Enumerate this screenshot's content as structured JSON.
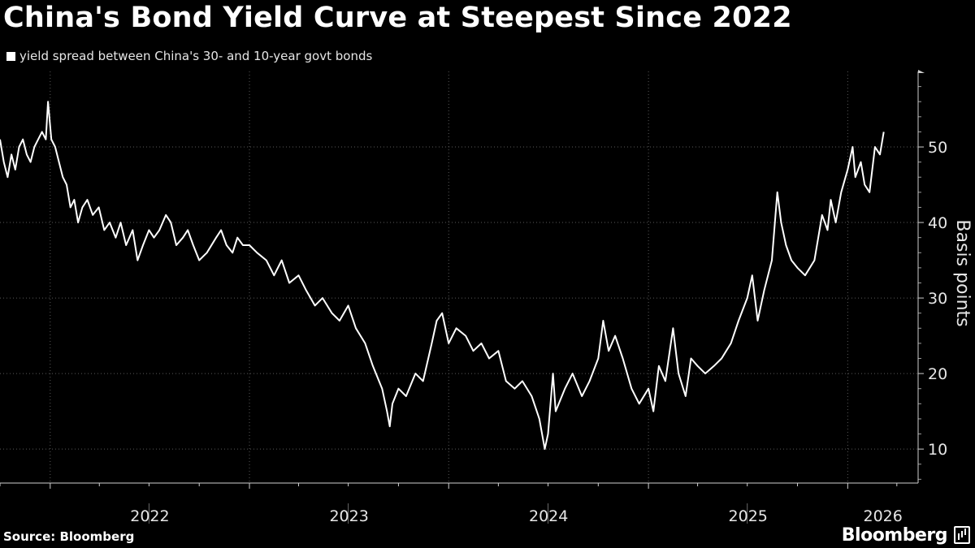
{
  "title": "China's Bond Yield Curve at Steepest Since 2022",
  "legend": {
    "label": "yield spread between China's 30- and 10-year govt bonds",
    "color": "#ffffff"
  },
  "source": "Source: Bloomberg",
  "brand": "Bloomberg",
  "chart_data": {
    "type": "line",
    "title": "China's Bond Yield Curve at Steepest Since 2022",
    "ylabel": "Basis points",
    "xlabel": "",
    "ylim": [
      5.5,
      60
    ],
    "yticks": [
      10,
      20,
      30,
      40,
      50
    ],
    "xlim": [
      "2021-10-01",
      "2026-05-10"
    ],
    "x_tick_labels": [
      "2022",
      "2023",
      "2024",
      "2025",
      "2026"
    ],
    "grid": true,
    "legend_position": "top-left",
    "series": [
      {
        "name": "yield spread between China's 30- and 10-year govt bonds",
        "color": "#ffffff",
        "points": [
          [
            "2021-10-01",
            51
          ],
          [
            "2021-10-08",
            48
          ],
          [
            "2021-10-15",
            46
          ],
          [
            "2021-10-22",
            49
          ],
          [
            "2021-10-29",
            47
          ],
          [
            "2021-11-05",
            50
          ],
          [
            "2021-11-12",
            51
          ],
          [
            "2021-11-19",
            49
          ],
          [
            "2021-11-26",
            48
          ],
          [
            "2021-12-03",
            50
          ],
          [
            "2021-12-10",
            51
          ],
          [
            "2021-12-17",
            52
          ],
          [
            "2021-12-24",
            51
          ],
          [
            "2021-12-28",
            56
          ],
          [
            "2022-01-03",
            51
          ],
          [
            "2022-01-10",
            50
          ],
          [
            "2022-01-17",
            48
          ],
          [
            "2022-01-24",
            46
          ],
          [
            "2022-01-31",
            45
          ],
          [
            "2022-02-07",
            42
          ],
          [
            "2022-02-14",
            43
          ],
          [
            "2022-02-21",
            40
          ],
          [
            "2022-03-01",
            42
          ],
          [
            "2022-03-10",
            43
          ],
          [
            "2022-03-20",
            41
          ],
          [
            "2022-03-31",
            42
          ],
          [
            "2022-04-10",
            39
          ],
          [
            "2022-04-20",
            40
          ],
          [
            "2022-05-01",
            38
          ],
          [
            "2022-05-10",
            40
          ],
          [
            "2022-05-20",
            37
          ],
          [
            "2022-06-01",
            39
          ],
          [
            "2022-06-10",
            35
          ],
          [
            "2022-06-20",
            37
          ],
          [
            "2022-07-01",
            39
          ],
          [
            "2022-07-10",
            38
          ],
          [
            "2022-07-20",
            39
          ],
          [
            "2022-08-01",
            41
          ],
          [
            "2022-08-10",
            40
          ],
          [
            "2022-08-20",
            37
          ],
          [
            "2022-09-01",
            38
          ],
          [
            "2022-09-10",
            39
          ],
          [
            "2022-09-20",
            37
          ],
          [
            "2022-10-01",
            35
          ],
          [
            "2022-10-15",
            36
          ],
          [
            "2022-11-01",
            38
          ],
          [
            "2022-11-10",
            39
          ],
          [
            "2022-11-20",
            37
          ],
          [
            "2022-12-01",
            36
          ],
          [
            "2022-12-10",
            38
          ],
          [
            "2022-12-20",
            37
          ],
          [
            "2023-01-01",
            37
          ],
          [
            "2023-01-15",
            36
          ],
          [
            "2023-02-01",
            35
          ],
          [
            "2023-02-15",
            33
          ],
          [
            "2023-03-01",
            35
          ],
          [
            "2023-03-15",
            32
          ],
          [
            "2023-04-01",
            33
          ],
          [
            "2023-04-15",
            31
          ],
          [
            "2023-05-01",
            29
          ],
          [
            "2023-05-15",
            30
          ],
          [
            "2023-06-01",
            28
          ],
          [
            "2023-06-15",
            27
          ],
          [
            "2023-07-01",
            29
          ],
          [
            "2023-07-15",
            26
          ],
          [
            "2023-08-01",
            24
          ],
          [
            "2023-08-15",
            21
          ],
          [
            "2023-09-01",
            18
          ],
          [
            "2023-09-10",
            15
          ],
          [
            "2023-09-15",
            13
          ],
          [
            "2023-09-20",
            16
          ],
          [
            "2023-10-01",
            18
          ],
          [
            "2023-10-15",
            17
          ],
          [
            "2023-11-01",
            20
          ],
          [
            "2023-11-15",
            19
          ],
          [
            "2023-12-01",
            24
          ],
          [
            "2023-12-10",
            27
          ],
          [
            "2023-12-20",
            28
          ],
          [
            "2024-01-01",
            24
          ],
          [
            "2024-01-15",
            26
          ],
          [
            "2024-02-01",
            25
          ],
          [
            "2024-02-15",
            23
          ],
          [
            "2024-03-01",
            24
          ],
          [
            "2024-03-15",
            22
          ],
          [
            "2024-04-01",
            23
          ],
          [
            "2024-04-15",
            19
          ],
          [
            "2024-05-01",
            18
          ],
          [
            "2024-05-15",
            19
          ],
          [
            "2024-06-01",
            17
          ],
          [
            "2024-06-15",
            14
          ],
          [
            "2024-06-25",
            10
          ],
          [
            "2024-07-01",
            12
          ],
          [
            "2024-07-10",
            20
          ],
          [
            "2024-07-15",
            15
          ],
          [
            "2024-08-01",
            18
          ],
          [
            "2024-08-15",
            20
          ],
          [
            "2024-09-01",
            17
          ],
          [
            "2024-09-15",
            19
          ],
          [
            "2024-10-01",
            22
          ],
          [
            "2024-10-10",
            27
          ],
          [
            "2024-10-20",
            23
          ],
          [
            "2024-11-01",
            25
          ],
          [
            "2024-11-15",
            22
          ],
          [
            "2024-12-01",
            18
          ],
          [
            "2024-12-15",
            16
          ],
          [
            "2025-01-01",
            18
          ],
          [
            "2025-01-10",
            15
          ],
          [
            "2025-01-20",
            21
          ],
          [
            "2025-02-01",
            19
          ],
          [
            "2025-02-15",
            26
          ],
          [
            "2025-02-25",
            20
          ],
          [
            "2025-03-10",
            17
          ],
          [
            "2025-03-20",
            22
          ],
          [
            "2025-04-01",
            21
          ],
          [
            "2025-04-15",
            20
          ],
          [
            "2025-05-01",
            21
          ],
          [
            "2025-05-15",
            22
          ],
          [
            "2025-06-01",
            24
          ],
          [
            "2025-06-15",
            27
          ],
          [
            "2025-07-01",
            30
          ],
          [
            "2025-07-10",
            33
          ],
          [
            "2025-07-20",
            27
          ],
          [
            "2025-08-01",
            31
          ],
          [
            "2025-08-15",
            35
          ],
          [
            "2025-08-25",
            44
          ],
          [
            "2025-09-01",
            40
          ],
          [
            "2025-09-10",
            37
          ],
          [
            "2025-09-20",
            35
          ],
          [
            "2025-10-01",
            34
          ],
          [
            "2025-10-15",
            33
          ],
          [
            "2025-11-01",
            35
          ],
          [
            "2025-11-15",
            41
          ],
          [
            "2025-11-25",
            39
          ],
          [
            "2025-12-01",
            43
          ],
          [
            "2025-12-10",
            40
          ],
          [
            "2025-12-20",
            44
          ],
          [
            "2026-01-01",
            47
          ],
          [
            "2026-01-10",
            50
          ],
          [
            "2026-01-15",
            46
          ],
          [
            "2026-01-25",
            48
          ],
          [
            "2026-02-01",
            45
          ],
          [
            "2026-02-10",
            44
          ],
          [
            "2026-02-20",
            50
          ],
          [
            "2026-03-01",
            49
          ],
          [
            "2026-03-08",
            52
          ]
        ]
      }
    ]
  }
}
